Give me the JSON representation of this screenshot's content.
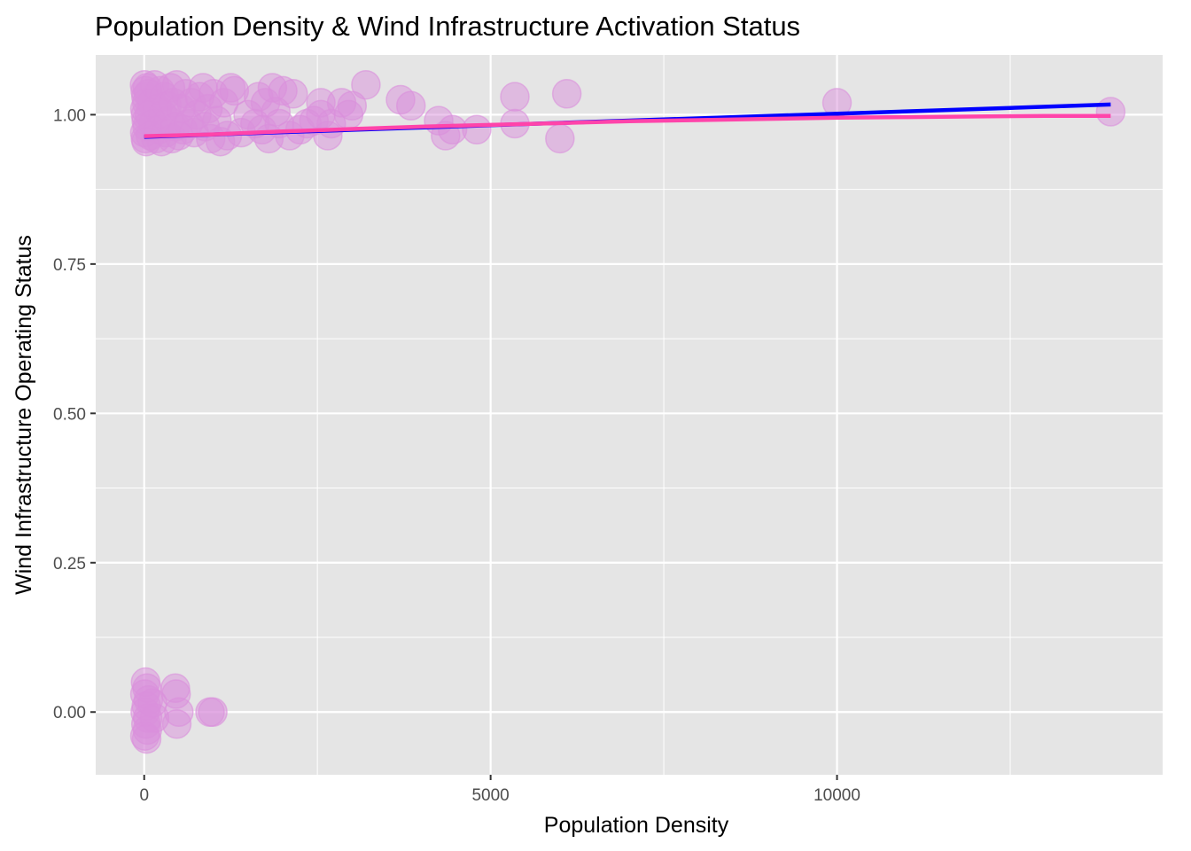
{
  "chart_data": {
    "type": "scatter",
    "title": "Population Density & Wind Infrastructure Activation Status",
    "xlabel": "Population Density",
    "ylabel": "Wind Infrastructure Operating Status",
    "xlim": [
      -700,
      14700
    ],
    "ylim": [
      -0.105,
      1.1
    ],
    "x_ticks": [
      0,
      5000,
      10000
    ],
    "x_tick_labels": [
      "0",
      "5000",
      "10000"
    ],
    "y_ticks": [
      0,
      0.25,
      0.5,
      0.75,
      1.0
    ],
    "y_tick_labels": [
      "0.00",
      "0.25",
      "0.50",
      "0.75",
      "1.00"
    ],
    "grid": true,
    "legend": "none",
    "colors": {
      "panel": "#e5e5e5",
      "grid": "#ffffff",
      "points": "#da8fdc",
      "linear_fit": "#0000ff",
      "smooth_fit": "#ff44aa"
    },
    "points": [
      {
        "x": 5,
        "y": 1.05
      },
      {
        "x": 15,
        "y": 1.04
      },
      {
        "x": 25,
        "y": 1.03
      },
      {
        "x": 35,
        "y": 1.02
      },
      {
        "x": 10,
        "y": 1.01
      },
      {
        "x": 20,
        "y": 1.0
      },
      {
        "x": 30,
        "y": 0.99
      },
      {
        "x": 40,
        "y": 0.98
      },
      {
        "x": 8,
        "y": 0.97
      },
      {
        "x": 18,
        "y": 0.96
      },
      {
        "x": 28,
        "y": 0.955
      },
      {
        "x": 45,
        "y": 1.045
      },
      {
        "x": 60,
        "y": 1.035
      },
      {
        "x": 75,
        "y": 1.0
      },
      {
        "x": 90,
        "y": 0.965
      },
      {
        "x": 110,
        "y": 1.02
      },
      {
        "x": 130,
        "y": 0.985
      },
      {
        "x": 150,
        "y": 1.05
      },
      {
        "x": 170,
        "y": 0.96
      },
      {
        "x": 190,
        "y": 1.01
      },
      {
        "x": 210,
        "y": 0.975
      },
      {
        "x": 230,
        "y": 1.04
      },
      {
        "x": 250,
        "y": 0.955
      },
      {
        "x": 270,
        "y": 1.0
      },
      {
        "x": 290,
        "y": 1.03
      },
      {
        "x": 310,
        "y": 0.97
      },
      {
        "x": 330,
        "y": 1.015
      },
      {
        "x": 350,
        "y": 0.99
      },
      {
        "x": 380,
        "y": 1.045
      },
      {
        "x": 400,
        "y": 0.96
      },
      {
        "x": 420,
        "y": 1.02
      },
      {
        "x": 450,
        "y": 0.98
      },
      {
        "x": 470,
        "y": 1.05
      },
      {
        "x": 500,
        "y": 0.965
      },
      {
        "x": 530,
        "y": 1.01
      },
      {
        "x": 560,
        "y": 0.975
      },
      {
        "x": 600,
        "y": 1.035
      },
      {
        "x": 640,
        "y": 0.985
      },
      {
        "x": 680,
        "y": 1.02
      },
      {
        "x": 720,
        "y": 0.97
      },
      {
        "x": 760,
        "y": 1.0
      },
      {
        "x": 800,
        "y": 1.03
      },
      {
        "x": 850,
        "y": 1.045
      },
      {
        "x": 880,
        "y": 0.98
      },
      {
        "x": 920,
        "y": 1.01
      },
      {
        "x": 960,
        "y": 0.96
      },
      {
        "x": 1000,
        "y": 1.035
      },
      {
        "x": 1050,
        "y": 0.99
      },
      {
        "x": 1100,
        "y": 0.955
      },
      {
        "x": 1150,
        "y": 1.02
      },
      {
        "x": 1200,
        "y": 0.965
      },
      {
        "x": 1250,
        "y": 1.045
      },
      {
        "x": 1300,
        "y": 1.04
      },
      {
        "x": 1400,
        "y": 0.97
      },
      {
        "x": 1500,
        "y": 1.0
      },
      {
        "x": 1600,
        "y": 0.985
      },
      {
        "x": 1650,
        "y": 1.03
      },
      {
        "x": 1700,
        "y": 0.975
      },
      {
        "x": 1750,
        "y": 1.02
      },
      {
        "x": 1800,
        "y": 0.96
      },
      {
        "x": 1850,
        "y": 1.045
      },
      {
        "x": 1900,
        "y": 1.005
      },
      {
        "x": 1950,
        "y": 0.985
      },
      {
        "x": 2000,
        "y": 1.04
      },
      {
        "x": 2100,
        "y": 0.965
      },
      {
        "x": 2150,
        "y": 1.035
      },
      {
        "x": 2250,
        "y": 0.975
      },
      {
        "x": 2350,
        "y": 0.985
      },
      {
        "x": 2450,
        "y": 0.99
      },
      {
        "x": 2550,
        "y": 1.0
      },
      {
        "x": 2550,
        "y": 1.02
      },
      {
        "x": 2650,
        "y": 0.965
      },
      {
        "x": 2700,
        "y": 0.985
      },
      {
        "x": 2850,
        "y": 1.02
      },
      {
        "x": 2950,
        "y": 1.0
      },
      {
        "x": 3000,
        "y": 1.015
      },
      {
        "x": 3200,
        "y": 1.05
      },
      {
        "x": 3700,
        "y": 1.025
      },
      {
        "x": 3850,
        "y": 1.015
      },
      {
        "x": 4250,
        "y": 0.99
      },
      {
        "x": 4350,
        "y": 0.965
      },
      {
        "x": 4450,
        "y": 0.975
      },
      {
        "x": 4800,
        "y": 0.975
      },
      {
        "x": 5350,
        "y": 1.03
      },
      {
        "x": 5350,
        "y": 0.985
      },
      {
        "x": 6000,
        "y": 0.96
      },
      {
        "x": 6100,
        "y": 1.035
      },
      {
        "x": 10000,
        "y": 1.02
      },
      {
        "x": 13950,
        "y": 1.005
      },
      {
        "x": 20,
        "y": 0.05
      },
      {
        "x": 40,
        "y": 0.04
      },
      {
        "x": 10,
        "y": 0.03
      },
      {
        "x": 60,
        "y": 0.02
      },
      {
        "x": 30,
        "y": 0.01
      },
      {
        "x": 15,
        "y": 0.0
      },
      {
        "x": 50,
        "y": -0.01
      },
      {
        "x": 25,
        "y": -0.02
      },
      {
        "x": 45,
        "y": -0.03
      },
      {
        "x": 10,
        "y": -0.04
      },
      {
        "x": 35,
        "y": -0.045
      },
      {
        "x": 150,
        "y": -0.01
      },
      {
        "x": 120,
        "y": 0.015
      },
      {
        "x": 450,
        "y": 0.04
      },
      {
        "x": 460,
        "y": 0.03
      },
      {
        "x": 500,
        "y": 0.0
      },
      {
        "x": 470,
        "y": -0.02
      },
      {
        "x": 950,
        "y": 0.0
      },
      {
        "x": 990,
        "y": 0.0
      }
    ],
    "linear_fit": [
      {
        "x": 0,
        "y": 0.963
      },
      {
        "x": 13950,
        "y": 1.017
      }
    ],
    "smooth_fit": [
      {
        "x": 0,
        "y": 0.964
      },
      {
        "x": 1000,
        "y": 0.967
      },
      {
        "x": 2000,
        "y": 0.972
      },
      {
        "x": 3000,
        "y": 0.976
      },
      {
        "x": 4000,
        "y": 0.98
      },
      {
        "x": 5000,
        "y": 0.983
      },
      {
        "x": 6000,
        "y": 0.986
      },
      {
        "x": 7000,
        "y": 0.989
      },
      {
        "x": 8000,
        "y": 0.991
      },
      {
        "x": 9000,
        "y": 0.993
      },
      {
        "x": 10000,
        "y": 0.995
      },
      {
        "x": 11000,
        "y": 0.996
      },
      {
        "x": 12000,
        "y": 0.997
      },
      {
        "x": 13000,
        "y": 0.998
      },
      {
        "x": 13950,
        "y": 0.998
      }
    ]
  }
}
